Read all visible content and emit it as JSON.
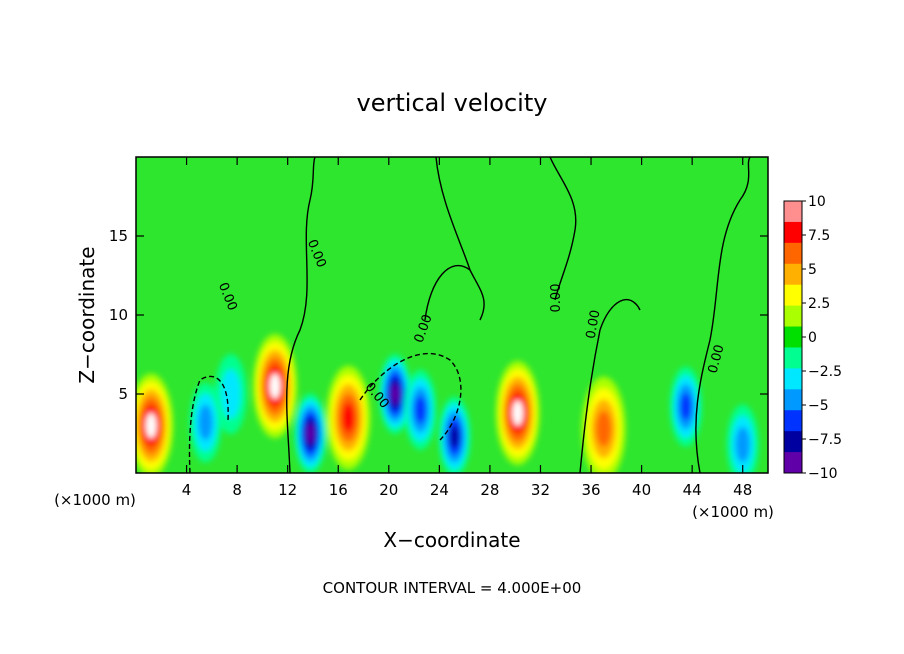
{
  "chart_data": {
    "type": "heatmap",
    "title": "vertical velocity",
    "xlabel": "X−coordinate",
    "ylabel": "Z−coordinate",
    "x_unit_left": "(×1000 m)",
    "x_unit_right": "(×1000 m)",
    "footer": "CONTOUR INTERVAL = 4.000E+00",
    "xlim": [
      0,
      50
    ],
    "ylim": [
      0,
      20
    ],
    "x_ticks": [
      4,
      8,
      12,
      16,
      20,
      24,
      28,
      32,
      36,
      40,
      44,
      48
    ],
    "y_ticks": [
      5,
      10,
      15
    ],
    "colorbar": {
      "range": [
        -10,
        10
      ],
      "labels": [
        "10",
        "7.5",
        "5",
        "2.5",
        "0",
        "−2.5",
        "−5",
        "−7.5",
        "−10"
      ],
      "colors": [
        "#ff8f8f",
        "#ff0000",
        "#ff6600",
        "#ffb000",
        "#ffff00",
        "#aaff00",
        "#00e000",
        "#00ff90",
        "#00e8ff",
        "#0099ff",
        "#0033ff",
        "#0000a0",
        "#6000a8"
      ],
      "background": "#2ee62e"
    },
    "contour_labels": [
      "0.00",
      "0.00",
      "0.00",
      "0.00",
      "0.00",
      "0.00",
      "0.00"
    ],
    "cells": [
      {
        "x": 1.2,
        "z": 3.0,
        "w": 10
      },
      {
        "x": 5.5,
        "z": 3.2,
        "w": -5
      },
      {
        "x": 7.5,
        "z": 5.0,
        "w": -4
      },
      {
        "x": 11.0,
        "z": 5.5,
        "w": 10
      },
      {
        "x": 13.8,
        "z": 2.5,
        "w": -10
      },
      {
        "x": 16.8,
        "z": 3.5,
        "w": 8
      },
      {
        "x": 20.5,
        "z": 5.0,
        "w": -10
      },
      {
        "x": 22.5,
        "z": 4.0,
        "w": -6
      },
      {
        "x": 25.2,
        "z": 2.3,
        "w": -8
      },
      {
        "x": 30.2,
        "z": 3.8,
        "w": 10
      },
      {
        "x": 37.0,
        "z": 2.8,
        "w": 6
      },
      {
        "x": 43.5,
        "z": 4.2,
        "w": -7
      },
      {
        "x": 48.0,
        "z": 1.8,
        "w": -5
      }
    ]
  }
}
